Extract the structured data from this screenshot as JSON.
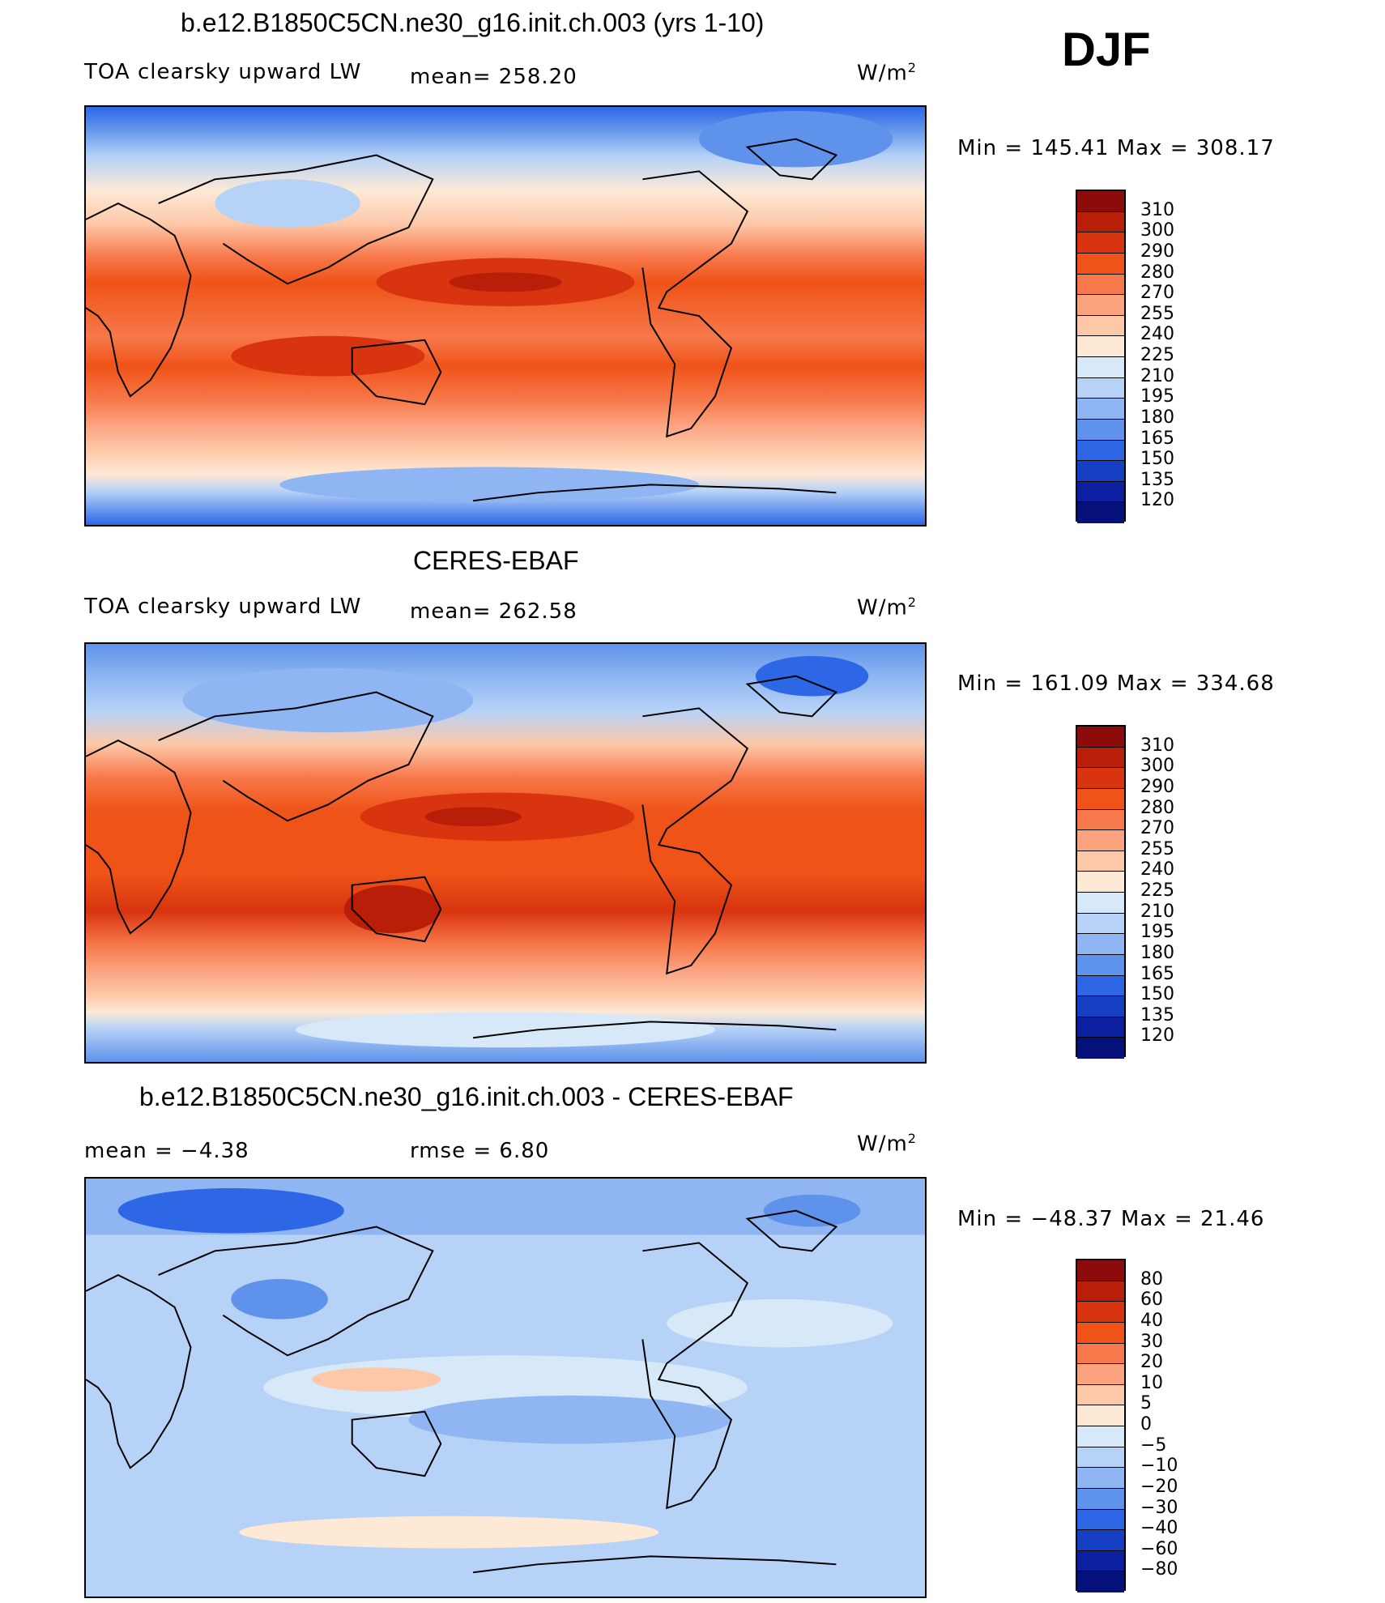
{
  "season": "DJF",
  "panels": [
    {
      "title": "b.e12.B1850C5CN.ne30_g16.init.ch.003 (yrs 1-10)",
      "left_label": "TOA clearsky upward LW",
      "mid_label": "mean=  258.20",
      "units_base": "W/m",
      "units_exp": "2",
      "minmax": "Min  =  145.41  Max  =  308.17"
    },
    {
      "title": "CERES-EBAF",
      "left_label": "TOA clearsky upward LW",
      "mid_label": "mean=  262.58",
      "units_base": "W/m",
      "units_exp": "2",
      "minmax": "Min  =  161.09  Max  =  334.68"
    },
    {
      "title": "b.e12.B1850C5CN.ne30_g16.init.ch.003 - CERES-EBAF",
      "left_label": "mean  =    −4.38",
      "mid_label": "rmse  =     6.80",
      "units_base": "W/m",
      "units_exp": "2",
      "minmax": "Min  =  −48.37  Max  =   21.46"
    }
  ],
  "chart_data": [
    {
      "type": "heatmap",
      "title": "b.e12.B1850C5CN.ne30_g16.init.ch.003 (yrs 1-10)",
      "variable": "TOA clearsky upward LW",
      "units": "W/m2",
      "mean": 258.2,
      "min": 145.41,
      "max": 308.17,
      "colorbar_levels": [
        "310",
        "300",
        "290",
        "280",
        "270",
        "255",
        "240",
        "225",
        "210",
        "195",
        "180",
        "165",
        "150",
        "135",
        "120"
      ],
      "colors": [
        "#8c0c0c",
        "#b81e08",
        "#d83410",
        "#ef5318",
        "#f7784a",
        "#fba27f",
        "#fdc8a8",
        "#fde9d6",
        "#d7e8f9",
        "#b6d2f7",
        "#8fb6f2",
        "#5f92ea",
        "#2d67e6",
        "#1640c4",
        "#0c1fa0",
        "#06107a"
      ]
    },
    {
      "type": "heatmap",
      "title": "CERES-EBAF",
      "variable": "TOA clearsky upward LW",
      "units": "W/m2",
      "mean": 262.58,
      "min": 161.09,
      "max": 334.68,
      "colorbar_levels": [
        "310",
        "300",
        "290",
        "280",
        "270",
        "255",
        "240",
        "225",
        "210",
        "195",
        "180",
        "165",
        "150",
        "135",
        "120"
      ],
      "colors": [
        "#8c0c0c",
        "#b81e08",
        "#d83410",
        "#ef5318",
        "#f7784a",
        "#fba27f",
        "#fdc8a8",
        "#fde9d6",
        "#d7e8f9",
        "#b6d2f7",
        "#8fb6f2",
        "#5f92ea",
        "#2d67e6",
        "#1640c4",
        "#0c1fa0",
        "#06107a"
      ]
    },
    {
      "type": "heatmap",
      "title": "b.e12.B1850C5CN.ne30_g16.init.ch.003 - CERES-EBAF",
      "units": "W/m2",
      "mean": -4.38,
      "rmse": 6.8,
      "min": -48.37,
      "max": 21.46,
      "colorbar_levels": [
        "80",
        "60",
        "40",
        "30",
        "20",
        "10",
        "5",
        "0",
        "−5",
        "−10",
        "−20",
        "−30",
        "−40",
        "−60",
        "−80"
      ],
      "colors": [
        "#8c0c0c",
        "#b81e08",
        "#d83410",
        "#ef5318",
        "#f7784a",
        "#fba27f",
        "#fdc8a8",
        "#fde9d6",
        "#d7e8f9",
        "#b6d2f7",
        "#8fb6f2",
        "#5f92ea",
        "#2d67e6",
        "#1640c4",
        "#0c1fa0",
        "#06107a"
      ]
    }
  ]
}
